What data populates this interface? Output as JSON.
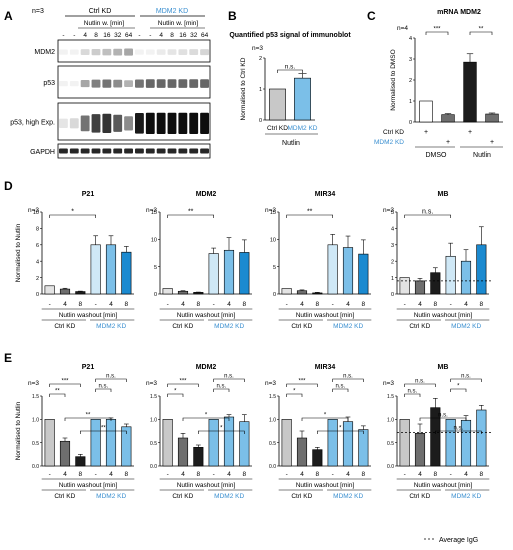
{
  "panel_letters": [
    "A",
    "B",
    "C",
    "D",
    "E"
  ],
  "colors": {
    "ctrl": "#c8c8c8",
    "ctrl_hi": "#e3e3e3",
    "dark": "#1c1c1c",
    "mid": "#6e6e6e",
    "mdm_light": "#cfe8f6",
    "mdm_mid": "#7bbfe8",
    "mdm_dark": "#1b8ad0",
    "accent": "#3a8fd0"
  },
  "panelA": {
    "n": "n=3",
    "ctrl_label": "Ctrl KD",
    "mdm2_label": "MDM2 KD",
    "nutlin_label": "Nutlin w. [min]",
    "lanes": [
      "-",
      "-",
      "4",
      "8",
      "16",
      "32",
      "64",
      "-",
      "-",
      "4",
      "8",
      "16",
      "32",
      "64"
    ],
    "blots": [
      "MDM2",
      "p53",
      "p53, high Exp.",
      "GAPDH"
    ]
  },
  "chart_data": [
    {
      "id": "B",
      "type": "bar",
      "title": "Quantified p53 signal of immunoblot",
      "n": "n=3",
      "ylabel": "Normalised to Ctrl KD",
      "categories": [
        "Ctrl KD",
        "MDM2 KD"
      ],
      "values": [
        1.0,
        1.35
      ],
      "errors": [
        0,
        0.15
      ],
      "ylim": [
        0,
        2
      ],
      "yticks": [
        "0",
        "1",
        "2"
      ],
      "group_label": "Nutlin",
      "significance": [
        "n.s."
      ]
    },
    {
      "id": "C",
      "type": "bar",
      "title": "mRNA MDM2",
      "n": "n=4",
      "ylabel": "Normalised to DMSO",
      "values": [
        1.0,
        0.35,
        2.85,
        0.38
      ],
      "errors": [
        0,
        0.05,
        0.4,
        0.05
      ],
      "ylim": [
        0,
        4
      ],
      "yticks": [
        "0",
        "1",
        "2",
        "3",
        "4"
      ],
      "row_labels": [
        "Ctrl KD",
        "MDM2 KD"
      ],
      "plus_signs": [
        "+",
        "+",
        "+",
        "+"
      ],
      "group_labels": [
        "DMSO",
        "Nutlin"
      ],
      "significance": [
        "***",
        "**"
      ]
    },
    {
      "id": "D1",
      "type": "bar",
      "title": "P21",
      "n": "n=3",
      "ylabel": "Normalised to Nutlin",
      "tick_labels": [
        "-",
        "4",
        "8",
        "-",
        "4",
        "8"
      ],
      "values": [
        1.0,
        0.6,
        0.3,
        6.0,
        6.0,
        5.1
      ],
      "errors": [
        0,
        0.1,
        0.05,
        1.1,
        1.1,
        0.7
      ],
      "ylim": [
        0,
        10
      ],
      "yticks": [
        "0",
        "2",
        "4",
        "6",
        "8",
        "10"
      ],
      "significance": [
        "*"
      ],
      "group_labels": [
        "Ctrl KD",
        "MDM2 KD"
      ],
      "xlabel": "Nutlin washout [min]"
    },
    {
      "id": "D2",
      "type": "bar",
      "title": "MDM2",
      "n": "n=3",
      "tick_labels": [
        "-",
        "4",
        "8",
        "-",
        "4",
        "8"
      ],
      "values": [
        1.0,
        0.5,
        0.3,
        7.4,
        8.0,
        7.6
      ],
      "errors": [
        0,
        0.1,
        0.05,
        1.0,
        2.3,
        2.3
      ],
      "ylim": [
        0,
        15
      ],
      "yticks": [
        "0",
        "5",
        "10",
        "15"
      ],
      "significance": [
        "**"
      ],
      "group_labels": [
        "Ctrl KD",
        "MDM2 KD"
      ],
      "xlabel": "Nutlin washout [min]"
    },
    {
      "id": "D3",
      "type": "bar",
      "title": "MIR34",
      "n": "n=3",
      "tick_labels": [
        "-",
        "4",
        "8",
        "-",
        "4",
        "8"
      ],
      "values": [
        1.0,
        0.6,
        0.2,
        9.0,
        8.5,
        7.3
      ],
      "errors": [
        0,
        0.15,
        0.1,
        1.9,
        2.1,
        2.6
      ],
      "ylim": [
        0,
        15
      ],
      "yticks": [
        "0",
        "5",
        "10",
        "15"
      ],
      "significance": [
        "**"
      ],
      "group_labels": [
        "Ctrl KD",
        "MDM2 KD"
      ],
      "xlabel": "Nutlin washout [min]"
    },
    {
      "id": "D4",
      "type": "bar",
      "title": "MB",
      "n": "n=3",
      "tick_labels": [
        "-",
        "4",
        "8",
        "-",
        "4",
        "8"
      ],
      "values": [
        1.0,
        0.8,
        1.3,
        2.3,
        2.0,
        3.0
      ],
      "errors": [
        0,
        0.15,
        0.3,
        0.8,
        0.7,
        1.1
      ],
      "ylim": [
        0,
        5
      ],
      "yticks": [
        "0",
        "1",
        "2",
        "3",
        "4",
        "5"
      ],
      "significance": [
        "n.s."
      ],
      "group_labels": [
        "Ctrl KD",
        "MDM2 KD"
      ],
      "xlabel": "Nutlin washout [min]",
      "reference_line": 0.8
    },
    {
      "id": "E1",
      "type": "bar",
      "title": "P21",
      "n": "n=3",
      "ylabel": "Normalised to Nutlin",
      "tick_labels": [
        "-",
        "4",
        "8",
        "-",
        "4",
        "8"
      ],
      "values": [
        1.0,
        0.53,
        0.2,
        1.0,
        1.0,
        0.84
      ],
      "errors": [
        0,
        0.07,
        0.05,
        0,
        0.03,
        0.06
      ],
      "ylim": [
        0,
        1.5
      ],
      "yticks": [
        "0.0",
        "0.5",
        "1.0",
        "1.5"
      ],
      "significance": [
        "***",
        "**",
        "n.s.",
        "n.s.",
        "**",
        "**"
      ],
      "group_labels": [
        "Ctrl KD",
        "MDM2 KD"
      ],
      "xlabel": "Nutlin washout [min]"
    },
    {
      "id": "E2",
      "type": "bar",
      "title": "MDM2",
      "n": "n=3",
      "tick_labels": [
        "-",
        "4",
        "8",
        "-",
        "4",
        "8"
      ],
      "values": [
        1.0,
        0.6,
        0.4,
        1.0,
        1.05,
        0.95
      ],
      "errors": [
        0,
        0.1,
        0.05,
        0,
        0.05,
        0.15
      ],
      "ylim": [
        0,
        1.5
      ],
      "yticks": [
        "0.0",
        "0.5",
        "1.0",
        "1.5"
      ],
      "significance": [
        "***",
        "*",
        "n.s.",
        "n.s.",
        "*",
        "*"
      ],
      "group_labels": [
        "Ctrl KD",
        "MDM2 KD"
      ],
      "xlabel": "Nutlin washout [min]"
    },
    {
      "id": "E3",
      "type": "bar",
      "title": "MIR34",
      "n": "n=3",
      "tick_labels": [
        "-",
        "4",
        "8",
        "-",
        "4",
        "8"
      ],
      "values": [
        1.0,
        0.6,
        0.35,
        1.0,
        0.95,
        0.78
      ],
      "errors": [
        0,
        0.15,
        0.05,
        0,
        0.1,
        0.08
      ],
      "ylim": [
        0,
        1.5
      ],
      "yticks": [
        "0.0",
        "0.5",
        "1.0",
        "1.5"
      ],
      "significance": [
        "***",
        "*",
        "n.s.",
        "n.s.",
        "*",
        "*"
      ],
      "group_labels": [
        "Ctrl KD",
        "MDM2 KD"
      ],
      "xlabel": "Nutlin washout [min]"
    },
    {
      "id": "E4",
      "type": "bar",
      "title": "MB",
      "n": "n=3",
      "tick_labels": [
        "-",
        "4",
        "8",
        "-",
        "4",
        "8"
      ],
      "values": [
        1.0,
        0.7,
        1.25,
        1.0,
        0.98,
        1.2
      ],
      "errors": [
        0,
        0.2,
        0.2,
        0,
        0.1,
        0.1
      ],
      "ylim": [
        0,
        1.5
      ],
      "yticks": [
        "0.0",
        "0.5",
        "1.0",
        "1.5"
      ],
      "significance": [
        "n.s.",
        "n.s.",
        "*",
        "n.s.",
        "n.s.",
        "n.s."
      ],
      "group_labels": [
        "Ctrl KD",
        "MDM2 KD"
      ],
      "xlabel": "Nutlin washout [min]",
      "reference_line": 0.72
    }
  ],
  "legend": {
    "average_igg": "Average IgG"
  }
}
